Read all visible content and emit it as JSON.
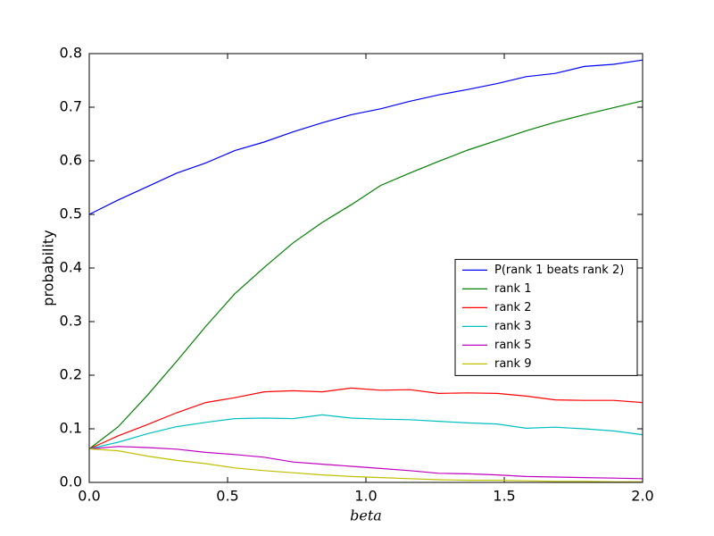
{
  "chart_data": {
    "type": "line",
    "xlabel": "beta",
    "ylabel": "probability",
    "x": [
      0,
      0.105,
      0.211,
      0.316,
      0.421,
      0.526,
      0.632,
      0.737,
      0.842,
      0.947,
      1.053,
      1.158,
      1.263,
      1.368,
      1.474,
      1.579,
      1.684,
      1.789,
      1.895,
      2.0
    ],
    "series": [
      {
        "name": "P(rank 1 beats rank 2)",
        "color": "#0000ff",
        "values": [
          0.5,
          0.527,
          0.552,
          0.577,
          0.596,
          0.619,
          0.635,
          0.654,
          0.671,
          0.686,
          0.697,
          0.711,
          0.723,
          0.733,
          0.744,
          0.757,
          0.763,
          0.776,
          0.78,
          0.788
        ]
      },
      {
        "name": "rank 1",
        "color": "#008000",
        "values": [
          0.0625,
          0.104,
          0.163,
          0.226,
          0.291,
          0.352,
          0.401,
          0.447,
          0.485,
          0.518,
          0.554,
          0.577,
          0.599,
          0.62,
          0.638,
          0.656,
          0.672,
          0.686,
          0.699,
          0.712
        ]
      },
      {
        "name": "rank 2",
        "color": "#ff0000",
        "values": [
          0.0625,
          0.087,
          0.108,
          0.13,
          0.149,
          0.158,
          0.169,
          0.171,
          0.169,
          0.176,
          0.172,
          0.173,
          0.166,
          0.167,
          0.166,
          0.161,
          0.154,
          0.153,
          0.153,
          0.149
        ]
      },
      {
        "name": "rank 3",
        "color": "#00bfbf",
        "values": [
          0.0625,
          0.075,
          0.091,
          0.104,
          0.112,
          0.119,
          0.12,
          0.119,
          0.126,
          0.12,
          0.118,
          0.117,
          0.114,
          0.111,
          0.109,
          0.101,
          0.103,
          0.1,
          0.096,
          0.089
        ]
      },
      {
        "name": "rank 5",
        "color": "#bf00bf",
        "values": [
          0.0625,
          0.067,
          0.065,
          0.062,
          0.056,
          0.052,
          0.047,
          0.038,
          0.034,
          0.03,
          0.026,
          0.022,
          0.017,
          0.016,
          0.014,
          0.011,
          0.01,
          0.009,
          0.008,
          0.007
        ]
      },
      {
        "name": "rank 9",
        "color": "#bfbf00",
        "values": [
          0.0625,
          0.059,
          0.049,
          0.041,
          0.035,
          0.027,
          0.022,
          0.018,
          0.014,
          0.011,
          0.009,
          0.007,
          0.005,
          0.004,
          0.004,
          0.003,
          0.002,
          0.002,
          0.001,
          0.001
        ]
      }
    ],
    "xlim": [
      0,
      2.0
    ],
    "xticks": [
      {
        "value": 0,
        "label": "0.0"
      },
      0.5,
      {
        "value": 1,
        "label": "1.0"
      },
      1.5,
      {
        "value": 2,
        "label": "2.0"
      }
    ],
    "ylim": [
      0,
      0.8
    ],
    "yticks": [
      {
        "value": 0,
        "label": "0.0"
      },
      0.1,
      0.2,
      0.3,
      0.4,
      0.5,
      0.6,
      0.7,
      0.8
    ],
    "grid": false,
    "legend": "center right"
  }
}
